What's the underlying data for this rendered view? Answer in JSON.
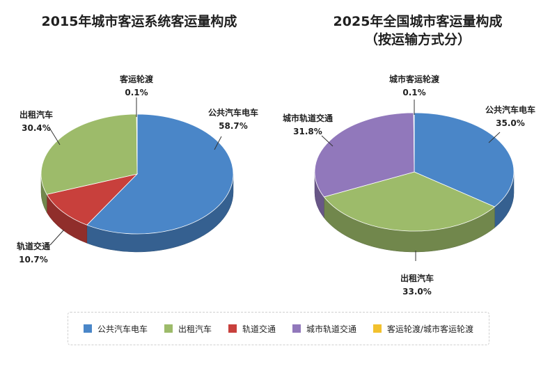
{
  "chart_data": [
    {
      "type": "pie",
      "title": "2015年城市客运系统客运量构成",
      "slices": [
        {
          "name": "公共汽车电车",
          "value": 58.7,
          "label": "公共汽车电车",
          "value_label": "58.7%",
          "color": "#4a86c8"
        },
        {
          "name": "轨道交通",
          "value": 10.7,
          "label": "轨道交通",
          "value_label": "10.7%",
          "color": "#c8403c"
        },
        {
          "name": "出租汽车",
          "value": 30.4,
          "label": "出租汽车",
          "value_label": "30.4%",
          "color": "#9dbb6a"
        },
        {
          "name": "客运轮渡",
          "value": 0.1,
          "label": "客运轮渡",
          "value_label": "0.1%",
          "color": "#f2c12e"
        }
      ]
    },
    {
      "type": "pie",
      "title": "2025年全国城市客运量构成",
      "subtitle": "（按运输方式分）",
      "slices": [
        {
          "name": "公共汽车电车",
          "value": 35.0,
          "label": "公共汽车电车",
          "value_label": "35.0%",
          "color": "#4a86c8"
        },
        {
          "name": "出租汽车",
          "value": 33.0,
          "label": "出租汽车",
          "value_label": "33.0%",
          "color": "#9dbb6a"
        },
        {
          "name": "城市轨道交通",
          "value": 31.8,
          "label": "城市轨道交通",
          "value_label": "31.8%",
          "color": "#9178bb"
        },
        {
          "name": "城市客运轮渡",
          "value": 0.1,
          "label": "城市客运轮渡",
          "value_label": "0.1%",
          "color": "#f2c12e"
        }
      ]
    }
  ],
  "legend": [
    {
      "label": "公共汽车电车",
      "color": "#4a86c8"
    },
    {
      "label": "出租汽车",
      "color": "#9dbb6a"
    },
    {
      "label": "轨道交通",
      "color": "#c8403c"
    },
    {
      "label": "城市轨道交通",
      "color": "#9178bb"
    },
    {
      "label": "客运轮渡/城市客运轮渡",
      "color": "#f2c12e"
    }
  ]
}
